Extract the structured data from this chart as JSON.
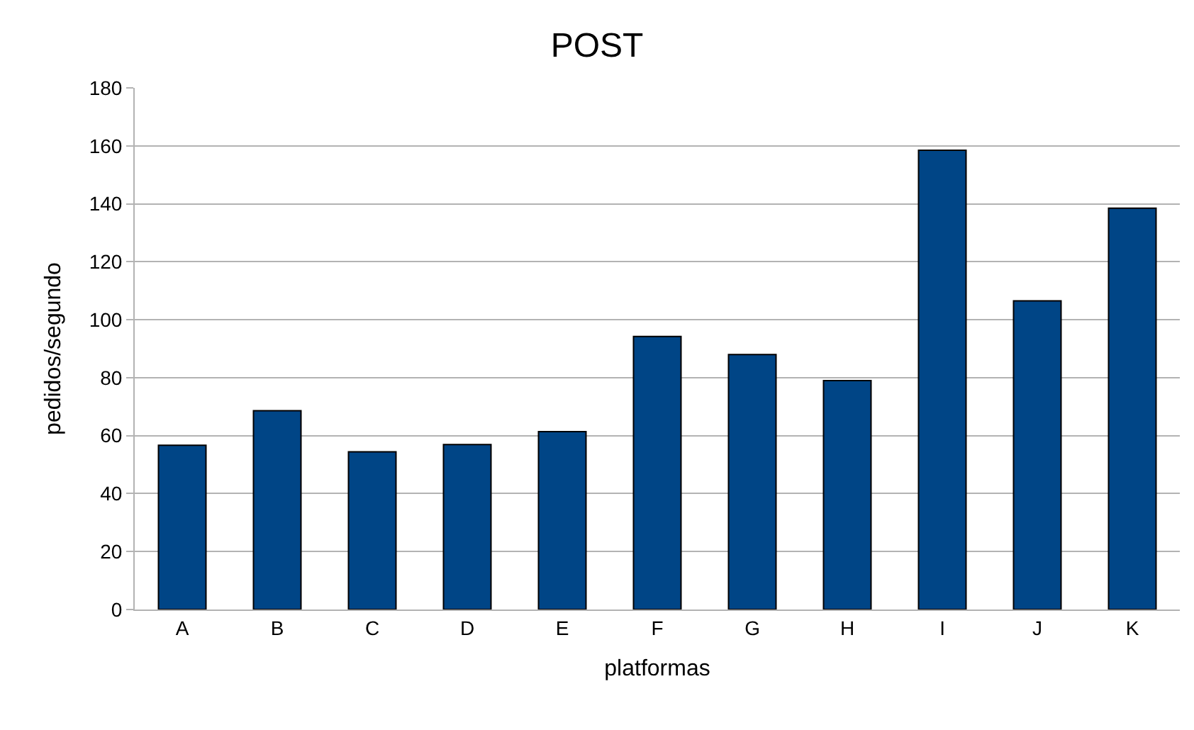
{
  "chart_data": {
    "type": "bar",
    "title": "POST",
    "xlabel": "platformas",
    "ylabel": "pedidos/segundo",
    "categories": [
      "A",
      "B",
      "C",
      "D",
      "E",
      "F",
      "G",
      "H",
      "I",
      "J",
      "K"
    ],
    "values": [
      56.7,
      68.6,
      54.4,
      56.9,
      61.4,
      94.2,
      88,
      79,
      158.5,
      106.5,
      138.5
    ],
    "color": "#004586",
    "ylim": [
      0,
      180
    ],
    "yticks": [
      0,
      20,
      40,
      60,
      80,
      100,
      120,
      140,
      160,
      180
    ],
    "grid": "y"
  }
}
